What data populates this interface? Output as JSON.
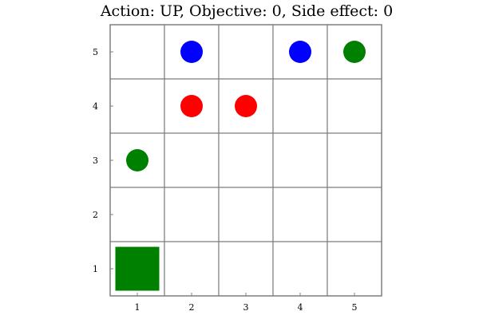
{
  "title": "Action: UP, Objective: 0, Side effect: 0",
  "grid": {
    "cols": 5,
    "rows": 5,
    "x_ticks": [
      "1",
      "2",
      "3",
      "4",
      "5"
    ],
    "y_ticks": [
      "1",
      "2",
      "3",
      "4",
      "5"
    ]
  },
  "colors": {
    "grid_line": "#808080",
    "blue": "#0000ff",
    "red": "#ff0000",
    "green": "#008000"
  },
  "entities": [
    {
      "kind": "agent",
      "shape": "square",
      "color": "green",
      "col": 1,
      "row": 1
    },
    {
      "kind": "ball",
      "shape": "circle",
      "color": "green",
      "col": 1,
      "row": 3
    },
    {
      "kind": "ball",
      "shape": "circle",
      "color": "red",
      "col": 2,
      "row": 4
    },
    {
      "kind": "ball",
      "shape": "circle",
      "color": "red",
      "col": 3,
      "row": 4
    },
    {
      "kind": "ball",
      "shape": "circle",
      "color": "blue",
      "col": 2,
      "row": 5
    },
    {
      "kind": "ball",
      "shape": "circle",
      "color": "blue",
      "col": 4,
      "row": 5
    },
    {
      "kind": "ball",
      "shape": "circle",
      "color": "green",
      "col": 5,
      "row": 5
    }
  ]
}
